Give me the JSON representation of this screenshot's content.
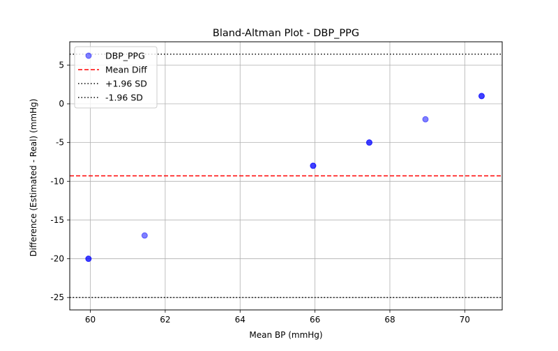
{
  "chart_data": {
    "type": "scatter",
    "title": "Bland-Altman Plot - DBP_PPG",
    "xlabel": "Mean BP (mmHg)",
    "ylabel": "Difference (Estimated - Real) (mmHg)",
    "xlim": [
      59.45,
      71.0
    ],
    "ylim": [
      -26.6,
      8.0
    ],
    "x_ticks": [
      60,
      62,
      64,
      66,
      68,
      70
    ],
    "y_ticks": [
      -25,
      -20,
      -15,
      -10,
      -5,
      0,
      5
    ],
    "grid": true,
    "legend_position": "top-left",
    "series": [
      {
        "name": "DBP_PPG",
        "color": "#0000ff",
        "alpha": 0.5,
        "points": [
          {
            "x": 59.95,
            "y": -20.0,
            "count": 2
          },
          {
            "x": 61.45,
            "y": -17.0,
            "count": 1
          },
          {
            "x": 65.95,
            "y": -8.0,
            "count": 2
          },
          {
            "x": 67.45,
            "y": -5.0,
            "count": 2
          },
          {
            "x": 68.95,
            "y": -2.0,
            "count": 1
          },
          {
            "x": 70.45,
            "y": 1.0,
            "count": 2
          }
        ]
      }
    ],
    "reference_lines": [
      {
        "name": "Mean Diff",
        "y": -9.3,
        "color": "#ff0000",
        "style": "dashed"
      },
      {
        "name": "+1.96 SD",
        "y": 6.4,
        "color": "#000000",
        "style": "dotted"
      },
      {
        "name": "-1.96 SD",
        "y": -25.0,
        "color": "#000000",
        "style": "dotted"
      }
    ]
  }
}
